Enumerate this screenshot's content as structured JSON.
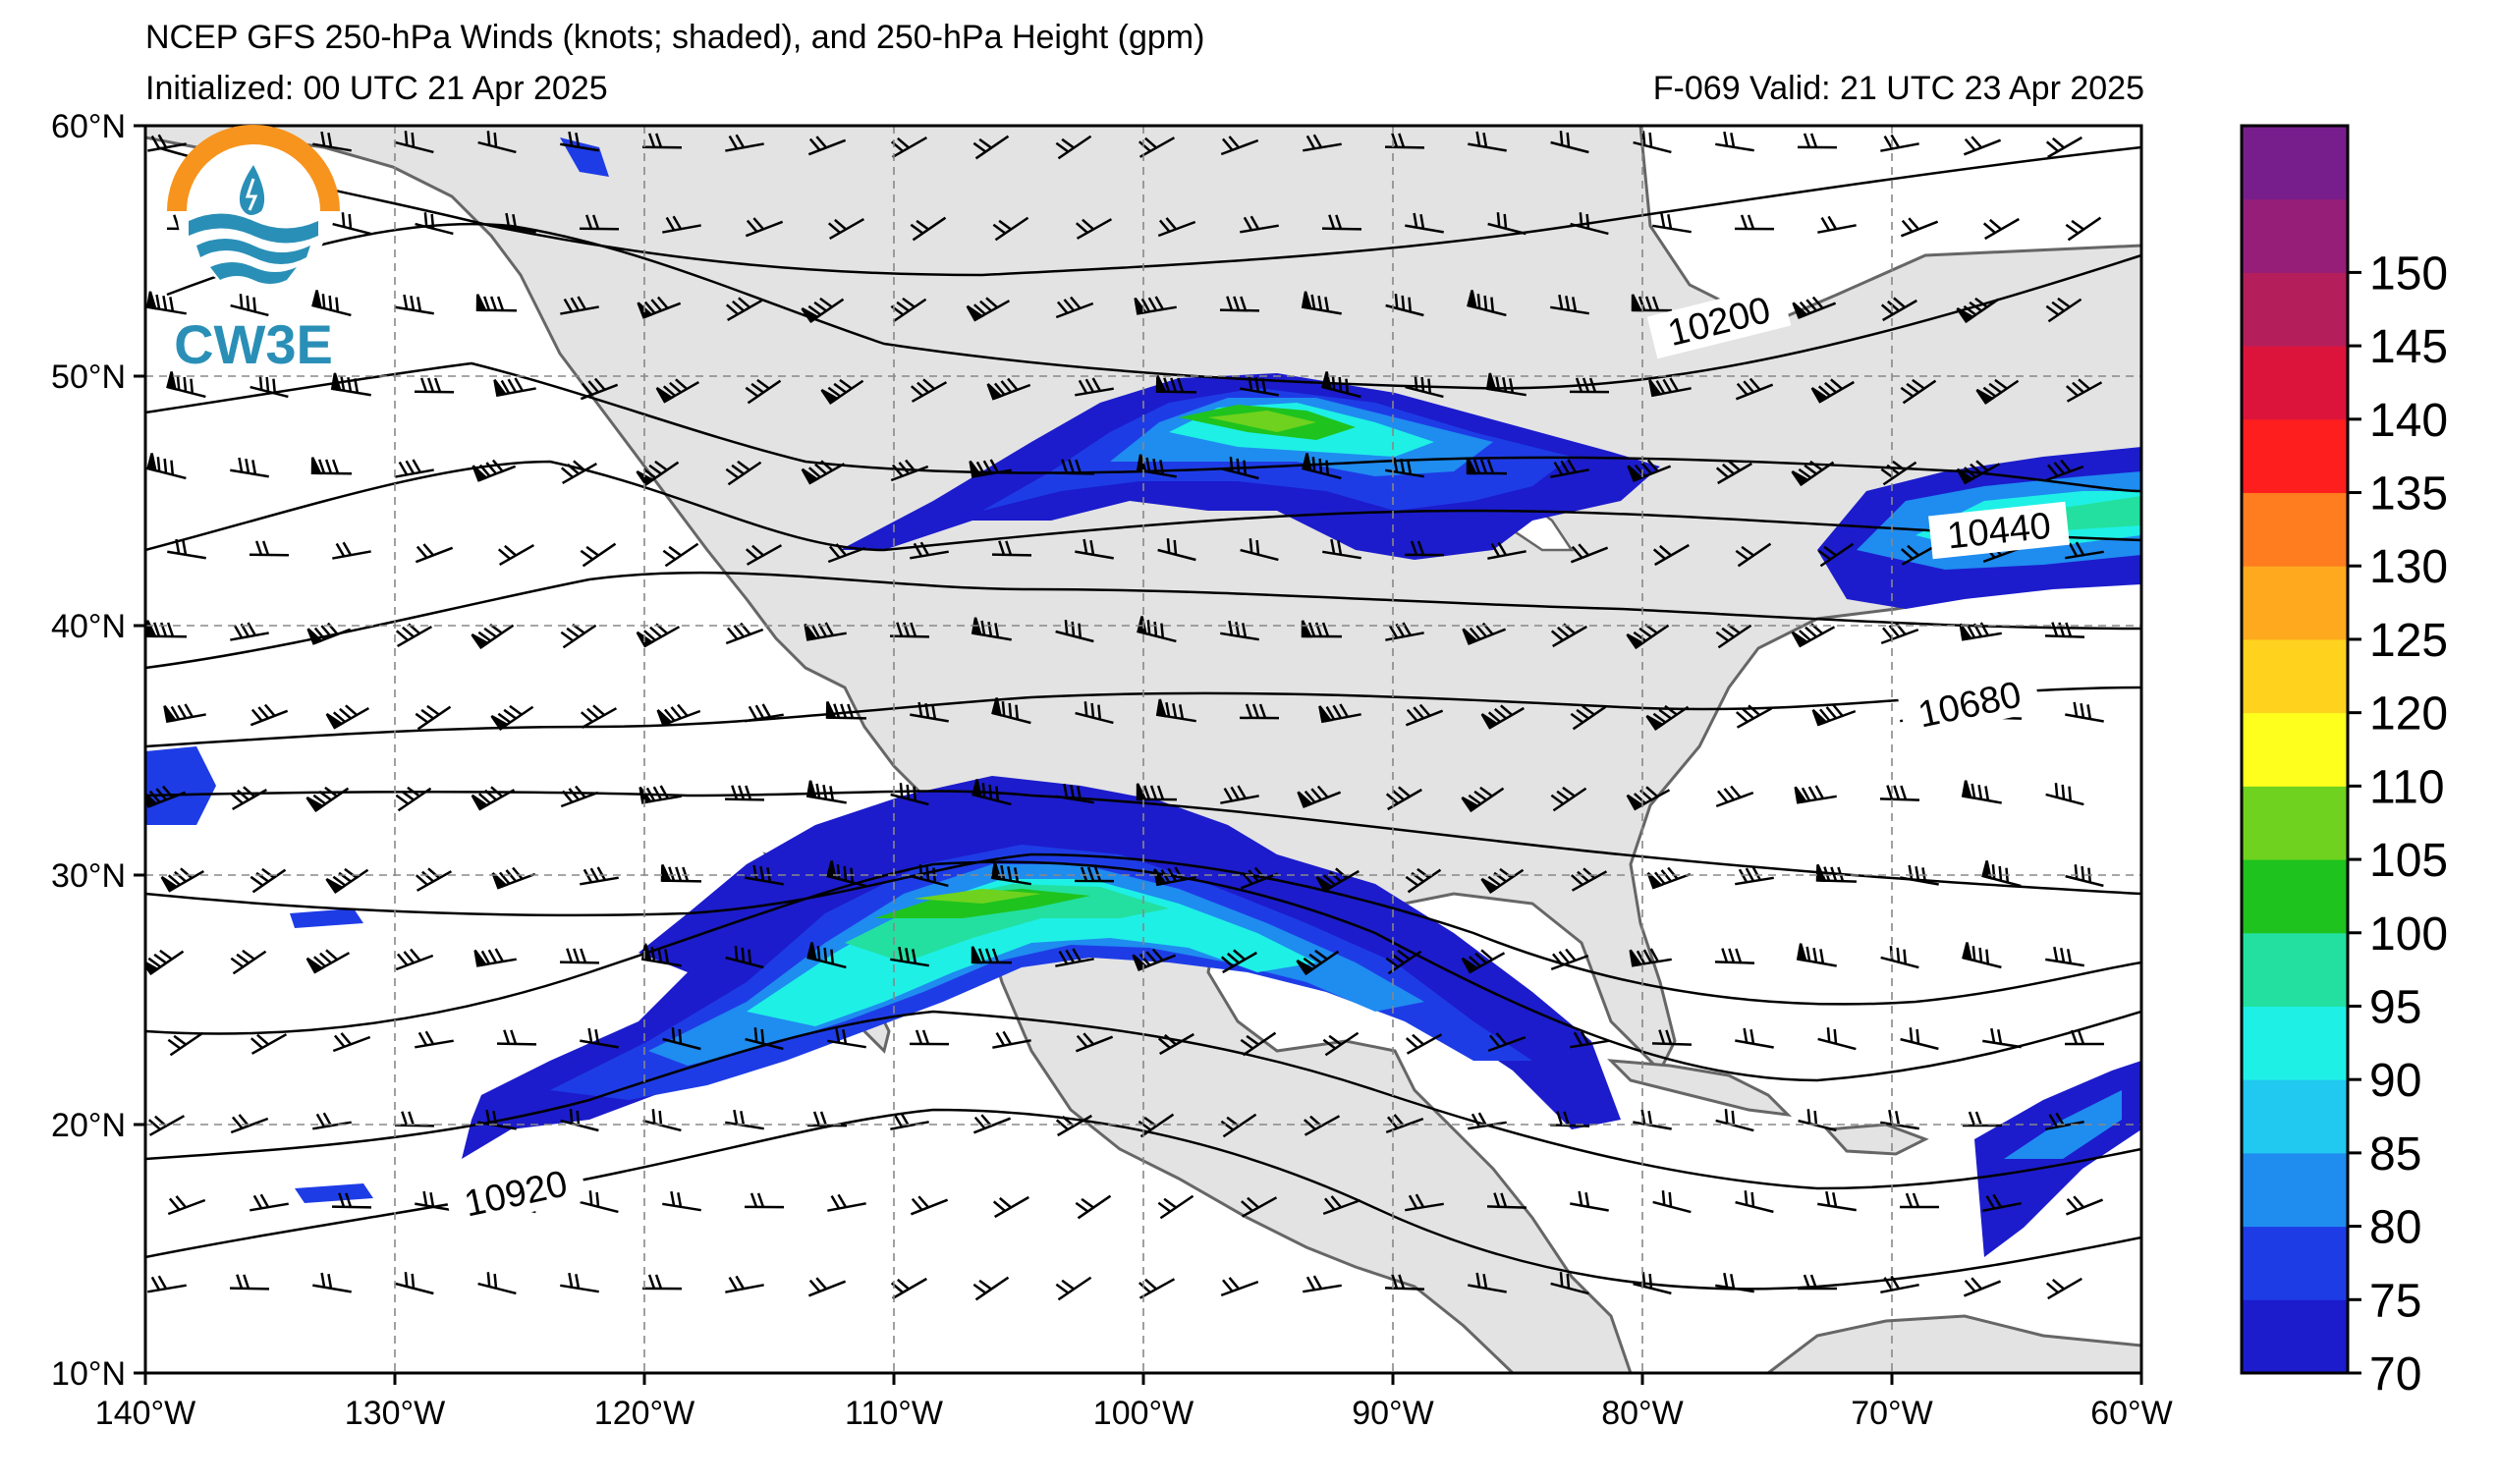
{
  "header": {
    "title": "NCEP GFS 250-hPa Winds (knots; shaded), and 250-hPa Height (gpm)",
    "initialized": "Initialized: 00 UTC 21 Apr 2025",
    "valid": "F-069  Valid: 21 UTC 23 Apr 2025"
  },
  "logo": {
    "text": "CW3E",
    "colors": {
      "sun": "#f7941d",
      "water": "#2a8fb7"
    }
  },
  "map": {
    "lon_range": [
      -140,
      -60
    ],
    "lat_range": [
      10,
      60
    ],
    "lat_labels": [
      "10°N",
      "20°N",
      "30°N",
      "40°N",
      "50°N",
      "60°N"
    ],
    "lon_labels": [
      "140°W",
      "130°W",
      "120°W",
      "110°W",
      "100°W",
      "90°W",
      "80°W",
      "70°W",
      "60°W"
    ],
    "land_color": "#e3e3e3",
    "gridlines": "dashed"
  },
  "contour_labels": [
    "10200",
    "10440",
    "10680",
    "10920"
  ],
  "colorbar": {
    "ticks": [
      "70",
      "75",
      "80",
      "85",
      "90",
      "95",
      "100",
      "105",
      "110",
      "120",
      "125",
      "130",
      "135",
      "140",
      "145",
      "150"
    ],
    "colors": [
      "#1c1ccc",
      "#1e3ce6",
      "#1f8cf0",
      "#21c8f0",
      "#1ef0e6",
      "#23e0a0",
      "#1ec31e",
      "#6ed21e",
      "#ffff1e",
      "#ffd21e",
      "#ffaa1e",
      "#ff7d1e",
      "#ff1e1e",
      "#dc143c",
      "#b41e5a",
      "#961e78",
      "#781e8c"
    ]
  }
}
